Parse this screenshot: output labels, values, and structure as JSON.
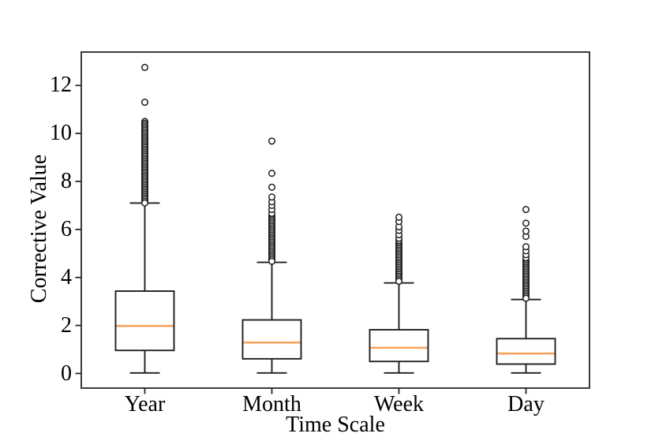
{
  "style": {
    "background": "#ffffff",
    "axis_color": "#262626",
    "line_color": "#1f1f1f",
    "median_color": "#f8a25c",
    "outlier_fill": "#ffffff"
  },
  "chart_data": {
    "type": "boxplot",
    "title": "",
    "xlabel": "Time Scale",
    "ylabel": "Corrective Value",
    "categories": [
      "Year",
      "Month",
      "Week",
      "Day"
    ],
    "yticks": [
      0,
      2,
      4,
      6,
      8,
      10,
      12
    ],
    "yticklabels": [
      "0",
      "2",
      "4",
      "6",
      "8",
      "10",
      "12"
    ],
    "ylim": [
      -0.61,
      13.39
    ],
    "grid": false,
    "legend": "none",
    "series": [
      {
        "name": "Year",
        "whislo": 0.02,
        "q1": 0.96,
        "med": 1.98,
        "q3": 3.43,
        "whishi": 7.1,
        "outliers_dense_range": [
          7.1,
          10.5
        ],
        "outliers_sparse": [
          11.3,
          12.75
        ]
      },
      {
        "name": "Month",
        "whislo": 0.02,
        "q1": 0.61,
        "med": 1.29,
        "q3": 2.23,
        "whishi": 4.63,
        "outliers_dense_range": [
          4.63,
          6.55
        ],
        "outliers_sparse": [
          6.67,
          6.83,
          7.0,
          7.15,
          7.35,
          7.76,
          8.34,
          9.68
        ]
      },
      {
        "name": "Week",
        "whislo": 0.02,
        "q1": 0.5,
        "med": 1.07,
        "q3": 1.82,
        "whishi": 3.77,
        "outliers_dense_range": [
          3.77,
          5.43
        ],
        "outliers_sparse": [
          5.54,
          5.63,
          5.78,
          5.96,
          6.11,
          6.33,
          6.51
        ]
      },
      {
        "name": "Day",
        "whislo": 0.02,
        "q1": 0.39,
        "med": 0.83,
        "q3": 1.45,
        "whishi": 3.08,
        "outliers_dense_range": [
          3.08,
          4.72
        ],
        "outliers_sparse": [
          4.82,
          4.95,
          5.11,
          5.28,
          5.71,
          5.93,
          6.26,
          6.83
        ]
      }
    ]
  }
}
